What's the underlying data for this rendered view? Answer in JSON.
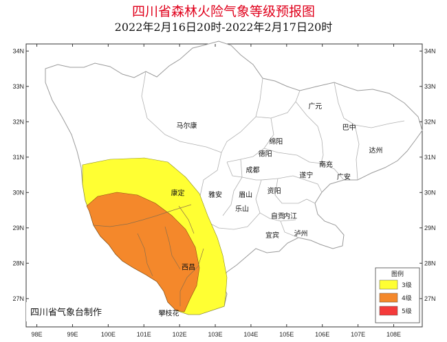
{
  "title": "四川省森林火险气象等级预报图",
  "subtitle": "2022年2月16日20时-2022年2月17日20时",
  "lat_axis": {
    "min": 26.2,
    "max": 34.2,
    "ticks": [
      {
        "value": 34,
        "label": "34N"
      },
      {
        "value": 33,
        "label": "33N"
      },
      {
        "value": 32,
        "label": "32N"
      },
      {
        "value": 31,
        "label": "31N"
      },
      {
        "value": 30,
        "label": "30N"
      },
      {
        "value": 29,
        "label": "29N"
      },
      {
        "value": 28,
        "label": "28N"
      },
      {
        "value": 27,
        "label": "27N"
      }
    ]
  },
  "lon_axis": {
    "min": 97.7,
    "max": 108.8,
    "ticks": [
      {
        "value": 98,
        "label": "98E"
      },
      {
        "value": 99,
        "label": "99E"
      },
      {
        "value": 100,
        "label": "100E"
      },
      {
        "value": 101,
        "label": "101E"
      },
      {
        "value": 102,
        "label": "102E"
      },
      {
        "value": 103,
        "label": "103E"
      },
      {
        "value": 104,
        "label": "104E"
      },
      {
        "value": 105,
        "label": "105E"
      },
      {
        "value": 106,
        "label": "106E"
      },
      {
        "value": 107,
        "label": "107E"
      },
      {
        "value": 108,
        "label": "108E"
      }
    ]
  },
  "cities": [
    {
      "name": "广元",
      "lon": 105.8,
      "lat": 32.45
    },
    {
      "name": "巴中",
      "lon": 106.75,
      "lat": 31.85
    },
    {
      "name": "马尔康",
      "lon": 102.2,
      "lat": 31.9
    },
    {
      "name": "绵阳",
      "lon": 104.7,
      "lat": 31.45
    },
    {
      "name": "达州",
      "lon": 107.5,
      "lat": 31.2
    },
    {
      "name": "德阳",
      "lon": 104.4,
      "lat": 31.1
    },
    {
      "name": "南充",
      "lon": 106.1,
      "lat": 30.8
    },
    {
      "name": "成都",
      "lon": 104.05,
      "lat": 30.65
    },
    {
      "name": "遂宁",
      "lon": 105.55,
      "lat": 30.5
    },
    {
      "name": "广安",
      "lon": 106.6,
      "lat": 30.45
    },
    {
      "name": "康定",
      "lon": 101.95,
      "lat": 30.0
    },
    {
      "name": "雅安",
      "lon": 103.0,
      "lat": 29.95
    },
    {
      "name": "眉山",
      "lon": 103.85,
      "lat": 29.95
    },
    {
      "name": "资阳",
      "lon": 104.65,
      "lat": 30.05
    },
    {
      "name": "乐山",
      "lon": 103.75,
      "lat": 29.55
    },
    {
      "name": "自贡",
      "lon": 104.75,
      "lat": 29.35
    },
    {
      "name": "内江",
      "lon": 105.1,
      "lat": 29.35
    },
    {
      "name": "宜宾",
      "lon": 104.6,
      "lat": 28.8
    },
    {
      "name": "泸州",
      "lon": 105.4,
      "lat": 28.85
    },
    {
      "name": "西昌",
      "lon": 102.25,
      "lat": 27.9
    },
    {
      "name": "攀枝花",
      "lon": 101.7,
      "lat": 26.6
    }
  ],
  "legend": {
    "title": "图例",
    "items": [
      {
        "label": "3级",
        "color": "#ffff33"
      },
      {
        "label": "4级",
        "color": "#f4882b"
      },
      {
        "label": "5级",
        "color": "#f43a3a"
      }
    ]
  },
  "credit": "四川省气象台制作",
  "colors": {
    "boundary": "#9a9a9a",
    "level3": "#ffff33",
    "level4": "#f4882b",
    "level5": "#f43a3a"
  }
}
